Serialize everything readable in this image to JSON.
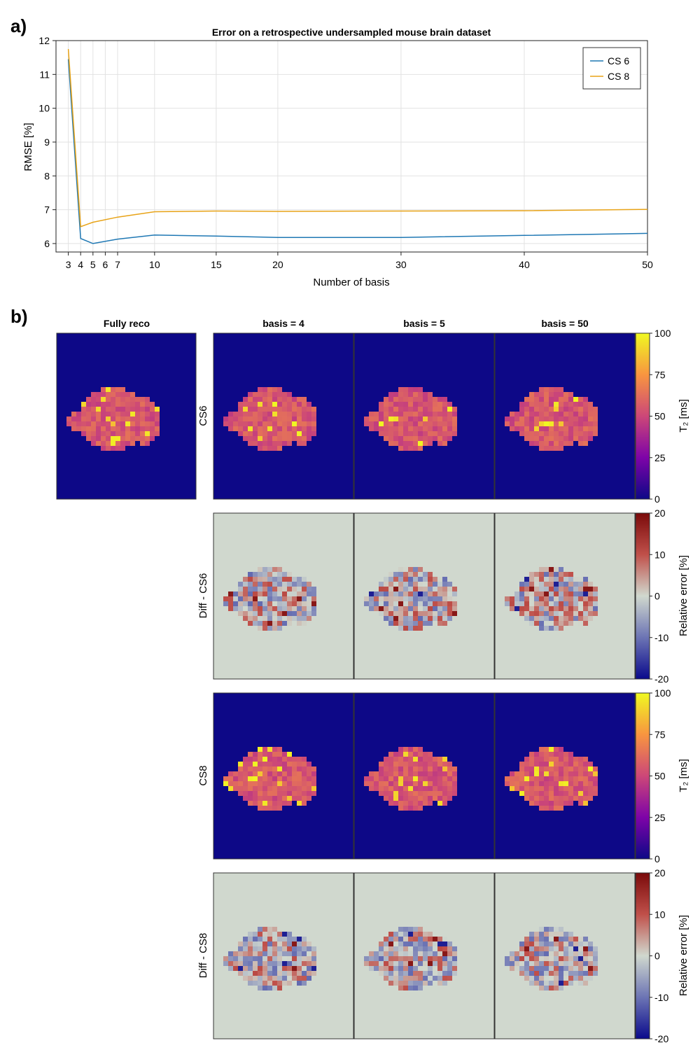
{
  "panels": {
    "a": "a)",
    "b": "b)"
  },
  "chart_data": [
    {
      "type": "line",
      "title": "Error on a retrospective undersampled mouse brain dataset",
      "xlabel": "Number of basis",
      "ylabel": "RMSE [%]",
      "xlim": [
        2.0,
        50
      ],
      "ylim": [
        5.75,
        12.0
      ],
      "xticks": [
        3,
        4,
        5,
        6,
        7,
        10,
        15,
        20,
        30,
        40,
        50
      ],
      "yticks": [
        6,
        7,
        8,
        9,
        10,
        11,
        12
      ],
      "grid": true,
      "legend_position": "top-right",
      "x": [
        3,
        4,
        5,
        7,
        10,
        15,
        20,
        30,
        40,
        50
      ],
      "series": [
        {
          "name": "CS 6",
          "color": "#1f78b4",
          "values": [
            11.45,
            6.15,
            6.0,
            6.13,
            6.25,
            6.22,
            6.18,
            6.18,
            6.24,
            6.3
          ]
        },
        {
          "name": "CS 8",
          "color": "#e8a317",
          "values": [
            11.75,
            6.5,
            6.63,
            6.78,
            6.94,
            6.96,
            6.95,
            6.96,
            6.97,
            7.01
          ]
        }
      ]
    },
    {
      "type": "heatmap",
      "columns": [
        "Fully reco",
        "basis = 4",
        "basis = 5",
        "basis = 50"
      ],
      "rows": [
        "CS6",
        "Diff - CS6",
        "CS8",
        "Diff - CS8"
      ],
      "colorbars": [
        {
          "label": "T₂ [ms]",
          "colormap": "plasma",
          "range": [
            0,
            100
          ],
          "ticks": [
            0,
            25,
            50,
            75,
            100
          ]
        },
        {
          "label": "Relative error [%]",
          "colormap": "diverging",
          "range": [
            -20,
            20
          ],
          "ticks": [
            -20,
            -10,
            0,
            10,
            20
          ]
        }
      ]
    }
  ]
}
